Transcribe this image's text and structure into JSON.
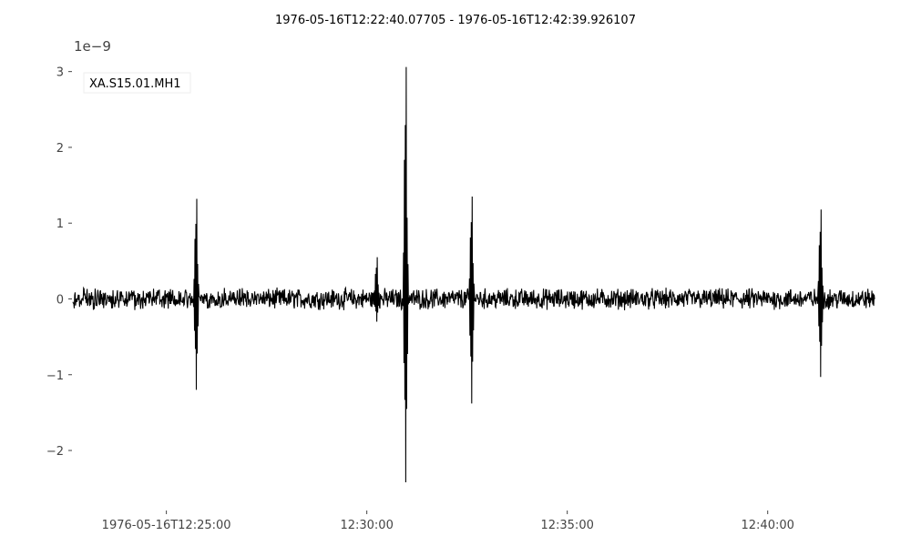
{
  "chart_data": {
    "type": "line",
    "title": "1976-05-16T12:22:40.07705  -  1976-05-16T12:42:39.926107",
    "xlabel": "",
    "ylabel": "",
    "y_offset_label": "1e−9",
    "y_scale": 1e-09,
    "xlim": [
      "1976-05-16T12:22:40.07705",
      "1976-05-16T12:42:39.926107"
    ],
    "ylim": [
      -2.6,
      3.2
    ],
    "grid": false,
    "legend_position": "top-left",
    "x_tick_labels": [
      "1976-05-16T12:25:00",
      "12:30:00",
      "12:35:00",
      "12:40:00"
    ],
    "x_tick_times": [
      "1976-05-16T12:25:00",
      "1976-05-16T12:30:00",
      "1976-05-16T12:35:00",
      "1976-05-16T12:40:00"
    ],
    "y_ticks": [
      3,
      2,
      1,
      0,
      -1,
      -2
    ],
    "y_tick_labels": [
      "3",
      "2",
      "1",
      "0",
      "−1",
      "−2"
    ],
    "series": [
      {
        "name": "XA.S15.01.MH1",
        "color": "#000000",
        "noise_amplitude": 0.12,
        "events": [
          {
            "time": "1976-05-16T12:25:45",
            "max": 1.32,
            "min": -1.2
          },
          {
            "time": "1976-05-16T12:30:15",
            "max": 0.55,
            "min": -0.3
          },
          {
            "time": "1976-05-16T12:30:58",
            "max": 3.06,
            "min": -2.42
          },
          {
            "time": "1976-05-16T12:32:37",
            "max": 1.35,
            "min": -1.38
          },
          {
            "time": "1976-05-16T12:41:19",
            "max": 1.18,
            "min": -1.03
          }
        ]
      }
    ]
  }
}
